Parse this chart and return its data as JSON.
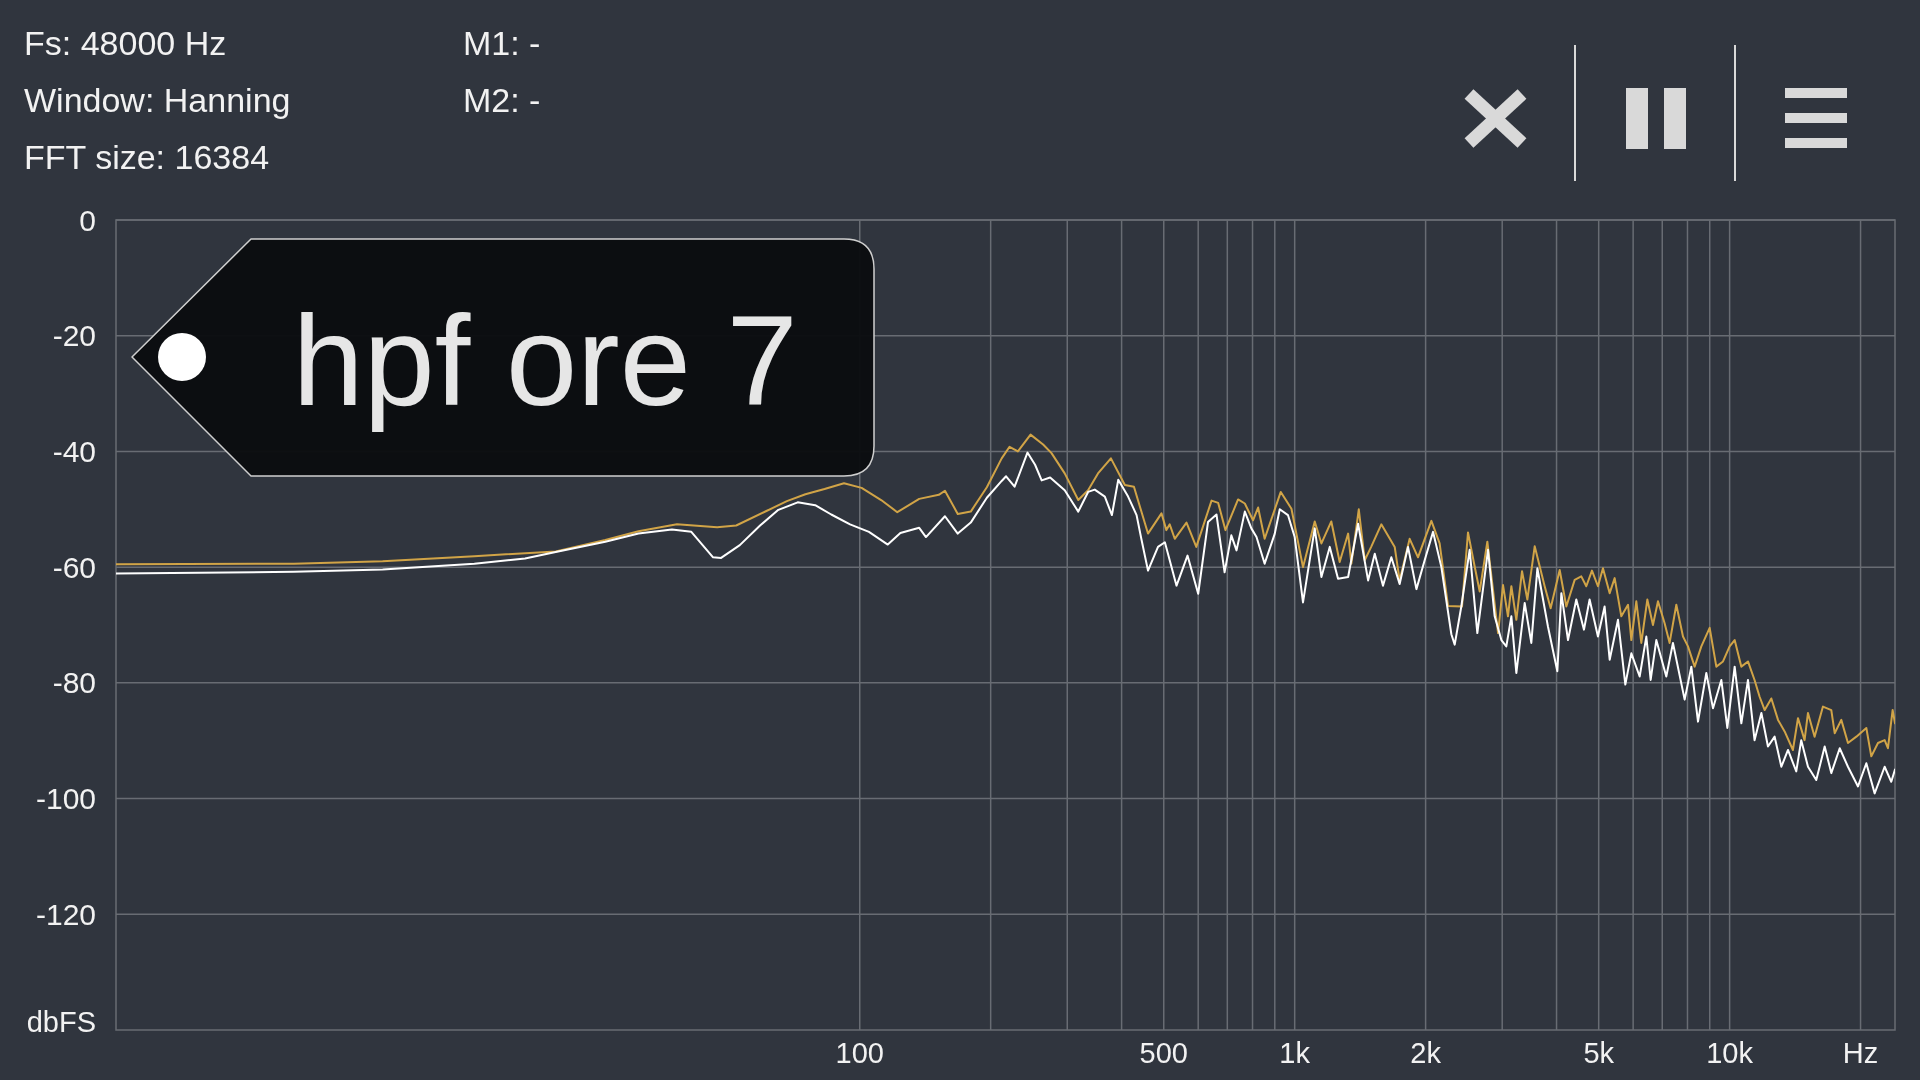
{
  "chart_data": {
    "type": "line",
    "title": "hpf ore 7",
    "ylabel": "dbFS",
    "annotations": [
      "Fs: 48000 Hz",
      "Window: Hanning",
      "FFT size: 16384",
      "M1: -",
      "M2: -"
    ],
    "log": "x",
    "xlim": [
      1.95,
      24000
    ],
    "xticks": [
      100,
      {
        "value": 200,
        "label": null
      },
      {
        "value": 300,
        "label": null
      },
      {
        "value": 400,
        "label": null
      },
      500,
      {
        "value": 600,
        "label": null
      },
      {
        "value": 700,
        "label": null
      },
      {
        "value": 800,
        "label": null
      },
      {
        "value": 900,
        "label": null
      },
      {
        "value": 1000,
        "label": "1k"
      },
      {
        "value": 2000,
        "label": "2k"
      },
      {
        "value": 3000,
        "label": null
      },
      {
        "value": 4000,
        "label": null
      },
      {
        "value": 5000,
        "label": "5k"
      },
      {
        "value": 6000,
        "label": null
      },
      {
        "value": 7000,
        "label": null
      },
      {
        "value": 8000,
        "label": null
      },
      {
        "value": 9000,
        "label": null
      },
      {
        "value": 10000,
        "label": "10k"
      },
      {
        "value": 20000,
        "label": "Hz"
      }
    ],
    "ylim": [
      -140,
      0
    ],
    "yticks": [
      0,
      -20,
      -40,
      -60,
      -80,
      -100,
      -120
    ],
    "grid": true,
    "series": [
      {
        "color": "#d1a447",
        "x": [
          1.95,
          5,
          8,
          13,
          20,
          26,
          31,
          38,
          47,
          52,
          61,
          68,
          75,
          83,
          92,
          101,
          112,
          122,
          137,
          152,
          157,
          168,
          180,
          196,
          212,
          221,
          231,
          247,
          264,
          276,
          296,
          318,
          335,
          353,
          378,
          407,
          427,
          460,
          494,
          507,
          516,
          530,
          564,
          594,
          644,
          667,
          693,
          741,
          768,
          802,
          824,
          853,
          929,
          983,
          1045,
          1112,
          1152,
          1214,
          1269,
          1327,
          1350,
          1404,
          1449,
          1501,
          1582,
          1698,
          1743,
          1838,
          1921,
          2062,
          2154,
          2252,
          2425,
          2503,
          2593,
          2663,
          2773,
          2935,
          3013,
          3093,
          3149,
          3233,
          3332,
          3427,
          3563,
          3756,
          3877,
          4067,
          4213,
          4403,
          4560,
          4682,
          4825,
          4980,
          5114,
          5299,
          5441,
          5636,
          5840,
          5943,
          6102,
          6266,
          6468,
          6664,
          6843,
          7088,
          7278,
          7541,
          7812,
          8021,
          8309,
          8609,
          8997,
          9320,
          9656,
          10000,
          10270,
          10640,
          11020,
          11410,
          11720,
          12040,
          12470,
          12920,
          13380,
          13980,
          14360,
          14870,
          15140,
          15680,
          16390,
          17130,
          17440,
          18060,
          18710,
          19560,
          20620,
          21170,
          21930,
          22720,
          23120,
          23700,
          24000
        ],
        "values": [
          -59.5,
          -59.4,
          -59.0,
          -58.1,
          -57.3,
          -55.3,
          -53.8,
          -52.6,
          -53.1,
          -52.8,
          -50.3,
          -48.6,
          -47.4,
          -46.5,
          -45.5,
          -46.3,
          -48.4,
          -50.5,
          -48.2,
          -47.5,
          -46.8,
          -50.8,
          -50.4,
          -46.2,
          -41.2,
          -39.2,
          -40.0,
          -37.1,
          -38.8,
          -40.3,
          -43.8,
          -48.4,
          -46.7,
          -43.8,
          -41.2,
          -45.8,
          -46.1,
          -54.2,
          -50.7,
          -53.6,
          -52.6,
          -55.1,
          -52.3,
          -56.5,
          -48.5,
          -48.9,
          -53.6,
          -48.3,
          -49.0,
          -51.9,
          -49.7,
          -55.1,
          -47.0,
          -49.9,
          -60.0,
          -52.1,
          -55.9,
          -52.1,
          -59.1,
          -54.2,
          -59.4,
          -50.0,
          -58.8,
          -56.4,
          -52.6,
          -56.5,
          -62.3,
          -55.1,
          -58.3,
          -52.0,
          -55.9,
          -66.7,
          -66.8,
          -54.0,
          -59.9,
          -64.2,
          -55.6,
          -71.4,
          -63.1,
          -68.5,
          -63.3,
          -69.1,
          -60.7,
          -65.6,
          -56.4,
          -63.3,
          -67.1,
          -60.5,
          -66.8,
          -62.2,
          -61.6,
          -63.3,
          -60.6,
          -63.3,
          -60.2,
          -64.5,
          -61.9,
          -68.5,
          -66.5,
          -72.6,
          -65.9,
          -73.1,
          -65.6,
          -70.0,
          -65.9,
          -69.7,
          -73.1,
          -66.5,
          -72.0,
          -73.7,
          -77.2,
          -73.7,
          -70.5,
          -77.2,
          -76.3,
          -73.7,
          -72.6,
          -77.2,
          -76.3,
          -79.5,
          -82.4,
          -84.7,
          -82.7,
          -86.4,
          -88.4,
          -91.6,
          -86.1,
          -89.9,
          -85.2,
          -89.3,
          -84.1,
          -84.7,
          -88.7,
          -86.4,
          -90.4,
          -89.3,
          -87.8,
          -92.7,
          -90.4,
          -89.9,
          -91.3,
          -84.7,
          -87.0
        ]
      },
      {
        "color": "#ffffff",
        "x": [
          1.95,
          5,
          8,
          13,
          17,
          20,
          26,
          31,
          37,
          41,
          46,
          48,
          53,
          59,
          65,
          72,
          79,
          86,
          95,
          105,
          116,
          124,
          137,
          142,
          157,
          168,
          180,
          196,
          212,
          217,
          227,
          243,
          253,
          262,
          274,
          296,
          318,
          335,
          347,
          366,
          380,
          393,
          414,
          433,
          444,
          460,
          485,
          503,
          535,
          567,
          600,
          632,
          661,
          690,
          715,
          735,
          768,
          795,
          817,
          853,
          900,
          924,
          965,
          1000,
          1045,
          1112,
          1152,
          1204,
          1258,
          1327,
          1399,
          1475,
          1528,
          1596,
          1668,
          1743,
          1822,
          1905,
          1990,
          2080,
          2174,
          2292,
          2333,
          2416,
          2525,
          2630,
          2783,
          2883,
          2987,
          3066,
          3149,
          3233,
          3379,
          3500,
          3614,
          3823,
          4017,
          4103,
          4250,
          4441,
          4625,
          4765,
          4980,
          5159,
          5299,
          5538,
          5757,
          5943,
          6211,
          6434,
          6583,
          6783,
          7151,
          7408,
          7881,
          8165,
          8458,
          8839,
          9158,
          9570,
          9879,
          10270,
          10640,
          11020,
          11410,
          11830,
          12250,
          12690,
          13150,
          13620,
          14230,
          14610,
          15140,
          15820,
          16540,
          17130,
          17910,
          18710,
          19730,
          20620,
          21550,
          22720,
          23530,
          24000
        ],
        "values": [
          -61.1,
          -60.8,
          -60.4,
          -59.4,
          -58.5,
          -57.4,
          -55.6,
          -54.2,
          -53.5,
          -53.9,
          -58.3,
          -58.4,
          -56.2,
          -52.8,
          -50.1,
          -48.8,
          -49.3,
          -50.9,
          -52.6,
          -53.9,
          -56.1,
          -54.1,
          -53.2,
          -54.8,
          -51.2,
          -54.2,
          -52.3,
          -48.0,
          -45.1,
          -44.3,
          -46.1,
          -40.2,
          -42.3,
          -45.0,
          -44.5,
          -46.7,
          -50.4,
          -47.0,
          -46.6,
          -47.8,
          -51.0,
          -44.9,
          -47.8,
          -51.0,
          -55.1,
          -60.6,
          -56.5,
          -55.7,
          -63.2,
          -58.0,
          -64.6,
          -52.2,
          -50.9,
          -60.9,
          -54.5,
          -57.1,
          -50.4,
          -53.3,
          -54.8,
          -59.4,
          -54.2,
          -50.0,
          -51.0,
          -54.8,
          -66.1,
          -53.3,
          -61.7,
          -56.5,
          -62.0,
          -61.7,
          -52.5,
          -62.3,
          -57.7,
          -63.2,
          -58.3,
          -62.9,
          -56.5,
          -63.8,
          -58.8,
          -53.9,
          -60.0,
          -71.6,
          -73.4,
          -66.8,
          -57.0,
          -71.4,
          -57.0,
          -68.5,
          -72.6,
          -73.7,
          -68.5,
          -78.3,
          -66.2,
          -73.1,
          -60.2,
          -70.3,
          -78.0,
          -64.5,
          -72.6,
          -65.6,
          -70.8,
          -65.6,
          -72.0,
          -66.8,
          -76.0,
          -69.1,
          -80.3,
          -74.9,
          -78.9,
          -72.0,
          -79.5,
          -72.6,
          -78.9,
          -73.1,
          -82.9,
          -77.2,
          -86.7,
          -78.3,
          -84.4,
          -79.5,
          -87.8,
          -77.2,
          -87.0,
          -79.5,
          -89.9,
          -85.2,
          -91.0,
          -89.3,
          -94.5,
          -91.6,
          -95.3,
          -89.9,
          -94.5,
          -96.8,
          -91.0,
          -95.6,
          -91.3,
          -94.5,
          -97.9,
          -93.9,
          -99.1,
          -94.5,
          -97.1,
          -95.0
        ]
      }
    ]
  }
}
